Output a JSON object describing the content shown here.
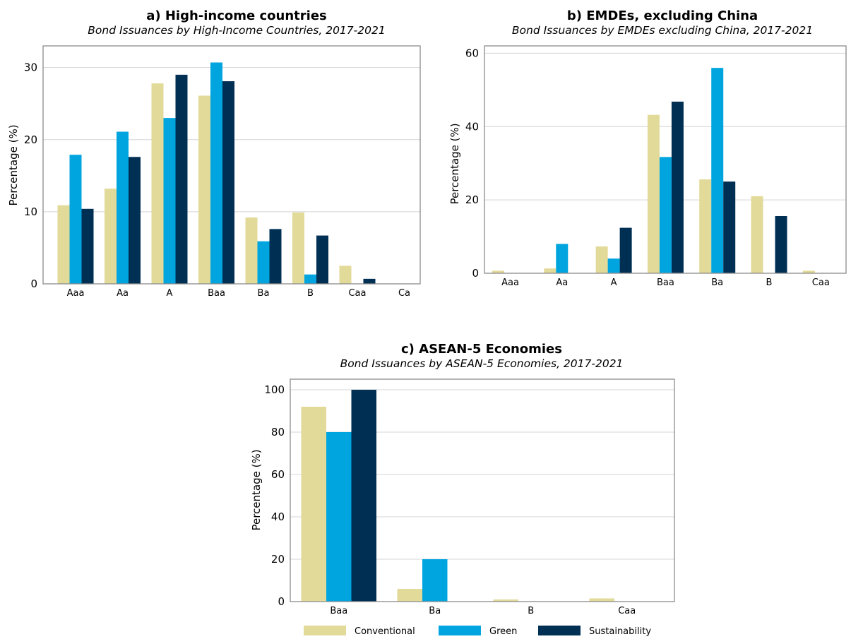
{
  "legend": {
    "placement": "bottom-center",
    "items": [
      {
        "name": "Conventional",
        "color": "#e2da98"
      },
      {
        "name": "Green",
        "color": "#00a5df"
      },
      {
        "name": "Sustainability",
        "color": "#002f54"
      }
    ]
  },
  "chart_data": [
    {
      "type": "bar",
      "title": "a) High-income countries",
      "subtitle": "Bond Issuances by High-Income Countries, 2017-2021",
      "xlabel": "",
      "ylabel": "Percentage (%)",
      "ylim": [
        0,
        33
      ],
      "yticks": [
        0,
        10,
        20,
        30
      ],
      "grid": true,
      "categories": [
        "Aaa",
        "Aa",
        "A",
        "Baa",
        "Ba",
        "B",
        "Caa",
        "Ca"
      ],
      "series": [
        {
          "name": "Conventional",
          "values": [
            10.9,
            13.2,
            27.8,
            26.1,
            9.2,
            9.9,
            2.5,
            0
          ]
        },
        {
          "name": "Green",
          "values": [
            17.9,
            21.1,
            23.0,
            30.7,
            5.9,
            1.3,
            0,
            0
          ]
        },
        {
          "name": "Sustainability",
          "values": [
            10.4,
            17.6,
            29.0,
            28.1,
            7.6,
            6.7,
            0.7,
            0
          ]
        }
      ]
    },
    {
      "type": "bar",
      "title": "b) EMDEs, excluding China",
      "subtitle": "Bond Issuances by EMDEs excluding China, 2017-2021",
      "xlabel": "",
      "ylabel": "Percentage (%)",
      "ylim": [
        0,
        62
      ],
      "yticks": [
        0,
        20,
        40,
        60
      ],
      "grid": true,
      "categories": [
        "Aaa",
        "Aa",
        "A",
        "Baa",
        "Ba",
        "B",
        "Caa"
      ],
      "series": [
        {
          "name": "Conventional",
          "values": [
            0.7,
            1.3,
            7.3,
            43.2,
            25.6,
            21.0,
            0.7
          ]
        },
        {
          "name": "Green",
          "values": [
            0,
            8.0,
            4.0,
            31.7,
            56.0,
            0,
            0
          ]
        },
        {
          "name": "Sustainability",
          "values": [
            0,
            0,
            12.4,
            46.8,
            25.0,
            15.6,
            0
          ]
        }
      ]
    },
    {
      "type": "bar",
      "title": "c) ASEAN-5 Economies",
      "subtitle": "Bond Issuances by ASEAN-5 Economies, 2017-2021",
      "xlabel": "",
      "ylabel": "Percentage (%)",
      "ylim": [
        0,
        105
      ],
      "yticks": [
        0,
        20,
        40,
        60,
        80,
        100
      ],
      "grid": true,
      "categories": [
        "Baa",
        "Ba",
        "B",
        "Caa"
      ],
      "series": [
        {
          "name": "Conventional",
          "values": [
            92,
            6,
            1,
            1.5
          ]
        },
        {
          "name": "Green",
          "values": [
            80,
            20,
            0,
            0
          ]
        },
        {
          "name": "Sustainability",
          "values": [
            100,
            0,
            0,
            0
          ]
        }
      ]
    }
  ]
}
